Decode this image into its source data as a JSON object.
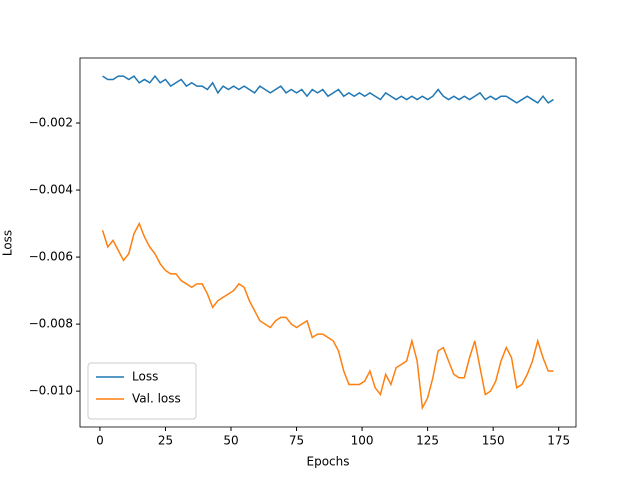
{
  "chart_data": {
    "type": "line",
    "xlabel": "Epochs",
    "ylabel": "Loss",
    "x": [
      1,
      3,
      5,
      7,
      9,
      11,
      13,
      15,
      17,
      19,
      21,
      23,
      25,
      27,
      29,
      31,
      33,
      35,
      37,
      39,
      41,
      43,
      45,
      47,
      49,
      51,
      53,
      55,
      57,
      59,
      61,
      63,
      65,
      67,
      69,
      71,
      73,
      75,
      77,
      79,
      81,
      83,
      85,
      87,
      89,
      91,
      93,
      95,
      97,
      99,
      101,
      103,
      105,
      107,
      109,
      111,
      113,
      115,
      117,
      119,
      121,
      123,
      125,
      127,
      129,
      131,
      133,
      135,
      137,
      139,
      141,
      143,
      145,
      147,
      149,
      151,
      153,
      155,
      157,
      159,
      161,
      163,
      165,
      167,
      169,
      171,
      173
    ],
    "series": [
      {
        "name": "Loss",
        "color": "#1f77b4",
        "values": [
          -0.0006,
          -0.0007,
          -0.0007,
          -0.0006,
          -0.0006,
          -0.0007,
          -0.0006,
          -0.0008,
          -0.0007,
          -0.0008,
          -0.0006,
          -0.0008,
          -0.0007,
          -0.0009,
          -0.0008,
          -0.0007,
          -0.0009,
          -0.0008,
          -0.0009,
          -0.0009,
          -0.001,
          -0.0008,
          -0.0011,
          -0.0009,
          -0.001,
          -0.0009,
          -0.001,
          -0.0009,
          -0.001,
          -0.0011,
          -0.0009,
          -0.001,
          -0.0011,
          -0.001,
          -0.0009,
          -0.0011,
          -0.001,
          -0.0011,
          -0.001,
          -0.0012,
          -0.001,
          -0.0011,
          -0.001,
          -0.0012,
          -0.0011,
          -0.001,
          -0.0012,
          -0.0011,
          -0.0012,
          -0.0011,
          -0.0012,
          -0.0011,
          -0.0012,
          -0.0013,
          -0.0011,
          -0.0012,
          -0.0013,
          -0.0012,
          -0.0013,
          -0.0012,
          -0.0013,
          -0.0012,
          -0.0013,
          -0.0012,
          -0.001,
          -0.0012,
          -0.0013,
          -0.0012,
          -0.0013,
          -0.0012,
          -0.0013,
          -0.0012,
          -0.0011,
          -0.0013,
          -0.0012,
          -0.0013,
          -0.0012,
          -0.0012,
          -0.0013,
          -0.0014,
          -0.0013,
          -0.0012,
          -0.0013,
          -0.0014,
          -0.0012,
          -0.0014,
          -0.0013
        ]
      },
      {
        "name": "Val. loss",
        "color": "#ff7f0e",
        "values": [
          -0.0052,
          -0.0057,
          -0.0055,
          -0.0058,
          -0.0061,
          -0.0059,
          -0.0053,
          -0.005,
          -0.0054,
          -0.0057,
          -0.0059,
          -0.0062,
          -0.0064,
          -0.0065,
          -0.0065,
          -0.0067,
          -0.0068,
          -0.0069,
          -0.0068,
          -0.0068,
          -0.0071,
          -0.0075,
          -0.0073,
          -0.0072,
          -0.0071,
          -0.007,
          -0.0068,
          -0.0069,
          -0.0073,
          -0.0076,
          -0.0079,
          -0.008,
          -0.0081,
          -0.0079,
          -0.0078,
          -0.0078,
          -0.008,
          -0.0081,
          -0.008,
          -0.0079,
          -0.0084,
          -0.0083,
          -0.0083,
          -0.0084,
          -0.0085,
          -0.0088,
          -0.0094,
          -0.0098,
          -0.0098,
          -0.0098,
          -0.0097,
          -0.0094,
          -0.0099,
          -0.0101,
          -0.0095,
          -0.0098,
          -0.0093,
          -0.0092,
          -0.0091,
          -0.0085,
          -0.0091,
          -0.0105,
          -0.0102,
          -0.0096,
          -0.0088,
          -0.0087,
          -0.0091,
          -0.0095,
          -0.0096,
          -0.0096,
          -0.009,
          -0.0085,
          -0.0093,
          -0.0101,
          -0.01,
          -0.0097,
          -0.0091,
          -0.0087,
          -0.009,
          -0.0099,
          -0.0098,
          -0.0095,
          -0.0091,
          -0.0085,
          -0.009,
          -0.0094,
          -0.0094
        ]
      }
    ],
    "xlim": [
      -7.6,
      181.6
    ],
    "xticks": [
      0,
      25,
      50,
      75,
      100,
      125,
      150,
      175
    ],
    "ylim": [
      -0.01107,
      -6e-05
    ],
    "yticks": [
      {
        "value": -0.01,
        "label": "−0.010"
      },
      {
        "value": -0.008,
        "label": "−0.008"
      },
      {
        "value": -0.006,
        "label": "−0.006"
      },
      {
        "value": -0.004,
        "label": "−0.004"
      },
      {
        "value": -0.002,
        "label": "−0.002"
      }
    ],
    "legend": "lower left",
    "grid": false
  }
}
